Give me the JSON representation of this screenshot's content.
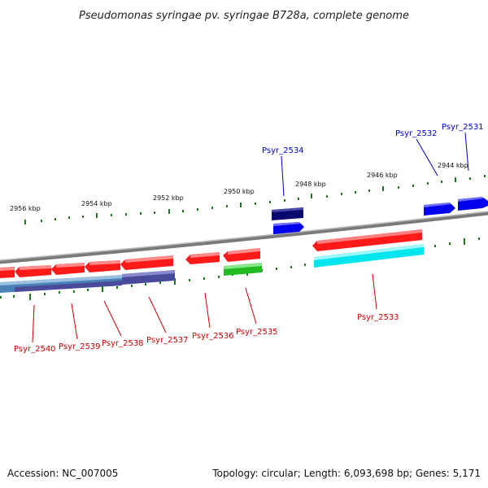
{
  "title": "Pseudomonas syringae pv. syringae B728a, complete genome",
  "footer": {
    "accession": "Accession: NC_007005",
    "summary": "Topology: circular; Length: 6,093,698 bp; Genes: 5,171"
  },
  "colors": {
    "backbone": "#7f7f7f",
    "tick": "#1a7a1a",
    "label_red": "#cc0000",
    "label_blue": "#0000cc",
    "gene_red": "#ff1a1a",
    "gene_blue": "#0000ee",
    "gene_navy": "#0a0a6e",
    "gene_green": "#22bb22",
    "gene_cyan": "#00e5ee",
    "gene_slate": "#4a4a9a",
    "gene_steel": "#4a82b8"
  },
  "scale_labels": [
    "2956 kbp",
    "2954 kbp",
    "2952 kbp",
    "2950 kbp",
    "2948 kbp",
    "2946 kbp",
    "2944 kbp"
  ],
  "genes": [
    {
      "name": "Psyr_2531",
      "color": "blue"
    },
    {
      "name": "Psyr_2532",
      "color": "blue"
    },
    {
      "name": "Psyr_2534",
      "color": "blue"
    },
    {
      "name": "Psyr_2533",
      "color": "red"
    },
    {
      "name": "Psyr_2535",
      "color": "red"
    },
    {
      "name": "Psyr_2536",
      "color": "red"
    },
    {
      "name": "Psyr_2537",
      "color": "red"
    },
    {
      "name": "Psyr_2538",
      "color": "red"
    },
    {
      "name": "Psyr_2539",
      "color": "red"
    },
    {
      "name": "Psyr_2540",
      "color": "red"
    }
  ]
}
